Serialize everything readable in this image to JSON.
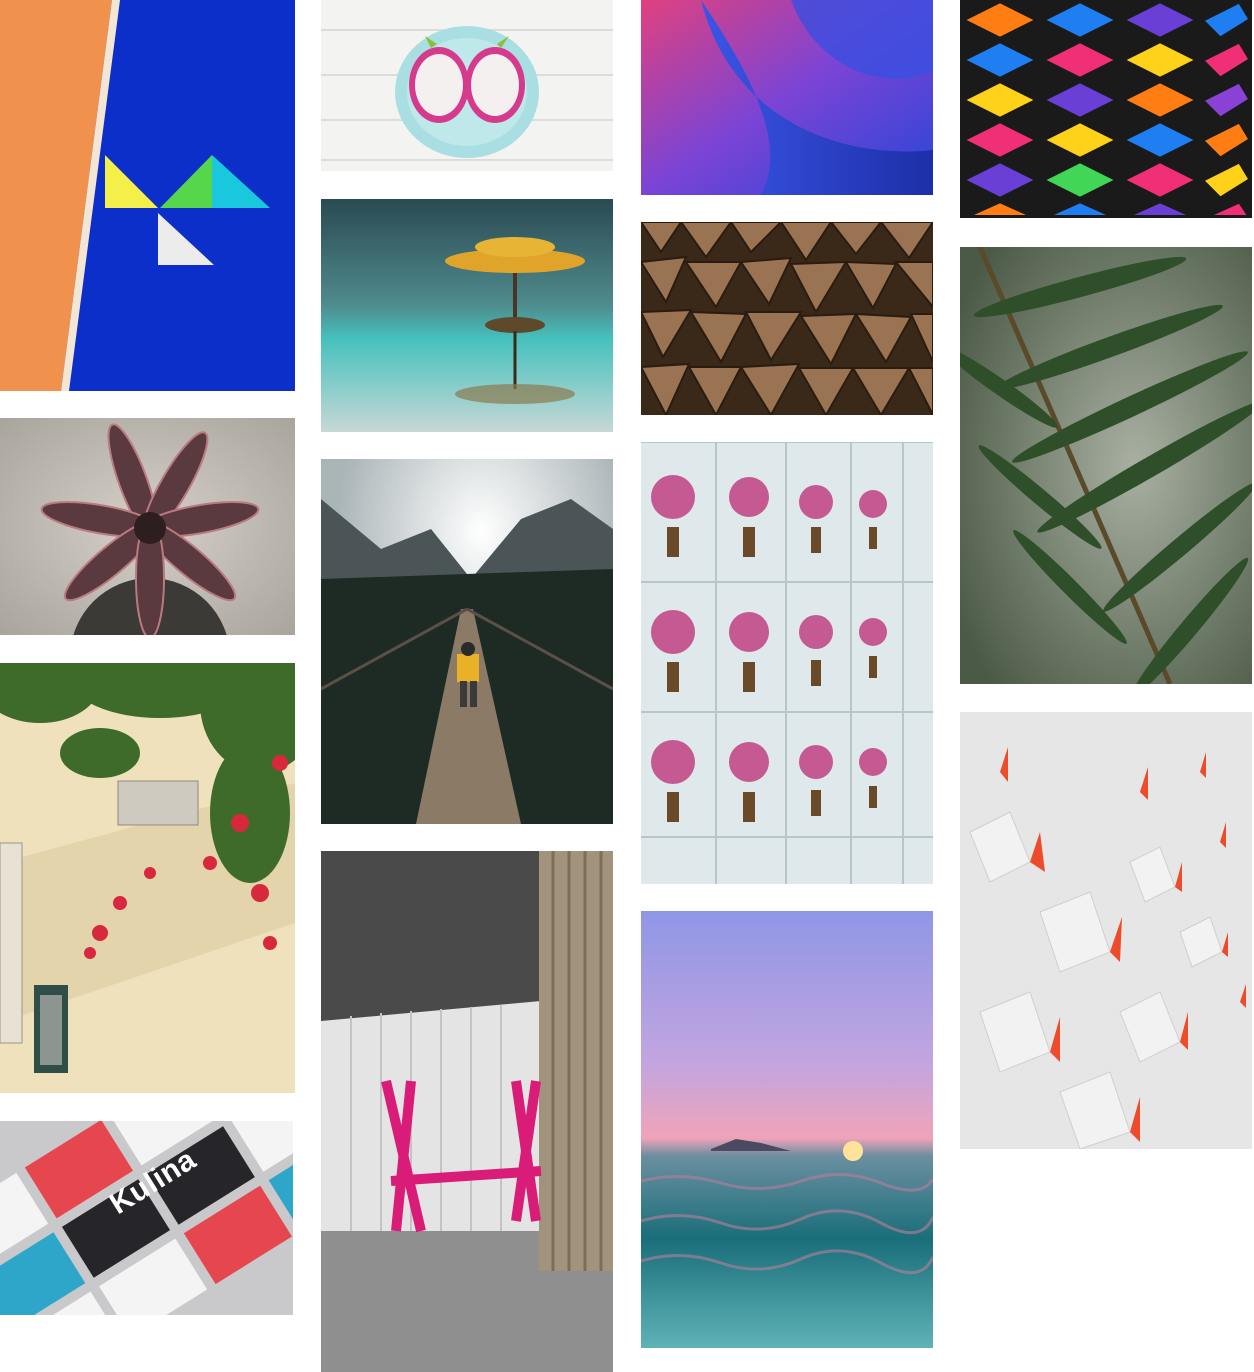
{
  "gallery": {
    "title": "",
    "columns": 4,
    "tiles": [
      {
        "id": "geometric-mural",
        "icon": "image-icon",
        "colors": {
          "orange": "#f0924e",
          "blue": "#0b2fc8",
          "yellow": "#f5ef4a",
          "green": "#56d64a",
          "cyan": "#19c8dc"
        }
      },
      {
        "id": "succulent",
        "icon": "image-icon",
        "colors": {
          "leaf": "#5a3a3e",
          "bg": "#e8e4de"
        }
      },
      {
        "id": "bougainvillea-wall",
        "icon": "image-icon",
        "colors": {
          "wall": "#f1e3bf",
          "flower": "#d8283d",
          "leaf": "#3f6b2a"
        }
      },
      {
        "id": "kulina-mockup",
        "icon": "image-icon",
        "text": "Kulina",
        "colors": {
          "dark": "#26262a",
          "red": "#e6464d",
          "cyan": "#2ea6c9"
        }
      },
      {
        "id": "dragon-fruit",
        "icon": "image-icon",
        "colors": {
          "wood": "#f3f3f1",
          "plate": "#a9dfe2",
          "fruit": "#d63a8d"
        }
      },
      {
        "id": "lake-tree",
        "icon": "image-icon",
        "colors": {
          "water": "#3fb2b4",
          "tree": "#e1a42a",
          "dark": "#2a4a52"
        }
      },
      {
        "id": "suspension-bridge",
        "icon": "image-icon",
        "colors": {
          "sky": "#cfd6da",
          "forest": "#1e2a24",
          "jacket": "#e9b127"
        }
      },
      {
        "id": "pink-bench",
        "icon": "image-icon",
        "colors": {
          "pink": "#d91c77",
          "gray": "#8f8f8f",
          "wood": "#a2937c"
        }
      },
      {
        "id": "abstract-curves",
        "icon": "image-icon",
        "colors": {
          "pink": "#e0417e",
          "blue": "#2646d6",
          "purple": "#7a44d6"
        }
      },
      {
        "id": "firewood",
        "icon": "image-icon",
        "colors": {
          "wood": "#8b6847",
          "dark": "#3a2818"
        }
      },
      {
        "id": "floral-tiles",
        "icon": "image-icon",
        "colors": {
          "tile": "#dfe9ec",
          "flower": "#c45a91",
          "stem": "#6b4a2a"
        }
      },
      {
        "id": "ocean-sunset",
        "icon": "image-icon",
        "colors": {
          "sky": "#a7a4e6",
          "pink": "#f0a3b8",
          "sea": "#1a6e7a"
        }
      },
      {
        "id": "colorful-cubes",
        "icon": "image-icon",
        "colors": {
          "orange": "#ff7d12",
          "blue": "#1f7ef2",
          "pink": "#f02f76",
          "yellow": "#ffd21a",
          "purple": "#6a3fd6"
        }
      },
      {
        "id": "palm-leaves",
        "icon": "image-icon",
        "colors": {
          "leaf": "#2f4e2a",
          "bg": "#7e8a78"
        }
      },
      {
        "id": "origami-wall",
        "icon": "image-icon",
        "colors": {
          "white": "#e6e6e6",
          "orange": "#ee4b2b"
        }
      }
    ]
  }
}
